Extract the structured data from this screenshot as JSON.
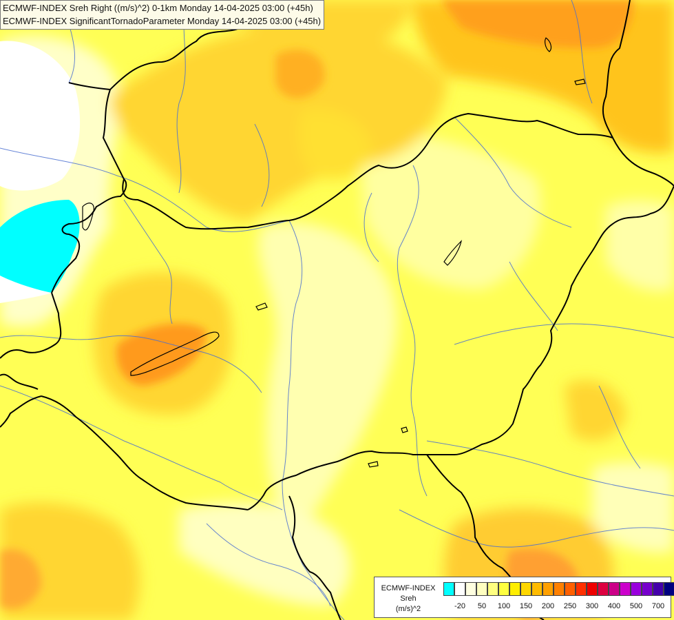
{
  "title": {
    "line1": "ECMWF-INDEX Sreh Right ((m/s)^2) 0-1km Monday 14-04-2025 03:00 (+45h)",
    "line2": "ECMWF-INDEX SignificantTornadoParameter Monday 14-04-2025 03:00 (+45h)"
  },
  "legend": {
    "line1": "ECMWF-INDEX",
    "line2": "Sreh",
    "line3": "(m/s)^2",
    "colors": [
      "#00ffff",
      "#ffffff",
      "#ffffe0",
      "#ffffc0",
      "#ffff80",
      "#ffff40",
      "#ffee00",
      "#ffd700",
      "#ffbb00",
      "#ffa000",
      "#ff8000",
      "#ff6000",
      "#ff3000",
      "#ee0000",
      "#dd0040",
      "#cc0088",
      "#cc00cc",
      "#9900dd",
      "#7700cc",
      "#4400aa",
      "#000080"
    ],
    "ticks": [
      "-20",
      "50",
      "100",
      "150",
      "200",
      "250",
      "300",
      "400",
      "500",
      "700"
    ]
  },
  "colors": {
    "light_yellow": "#ffffb0",
    "pale_yellow": "#ffffcc",
    "yellow": "#ffff55",
    "gold": "#ffdd33",
    "orange": "#ffbb22",
    "dark_orange": "#ff8c1a",
    "cyan": "#00ffff",
    "river": "#4a6fd0",
    "border": "#000000"
  }
}
